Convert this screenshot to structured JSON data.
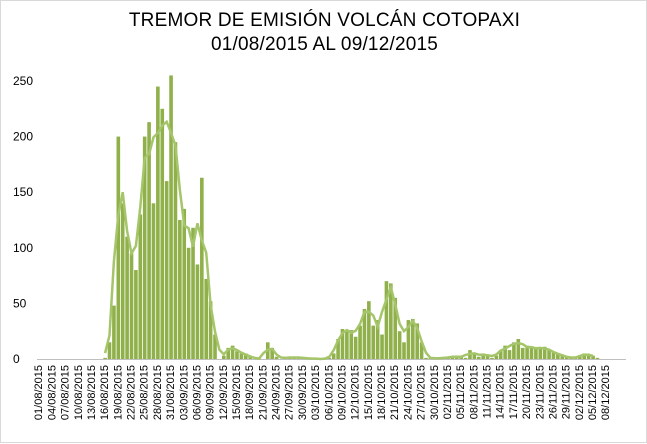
{
  "chart_data": {
    "type": "bar",
    "title_line1": "TREMOR DE EMISIÓN VOLCÁN COTOPAXI",
    "title_line2": "01/08/2015 AL 09/12/2015",
    "xlabel": "",
    "ylabel": "",
    "ylim": [
      0,
      250
    ],
    "yticks": [
      "0",
      "50",
      "100",
      "150",
      "200",
      "250"
    ],
    "grid": false,
    "legend": "none",
    "bar_color": "#8fb04a",
    "line_color": "#a5c56a",
    "start_date": "01/08/2015",
    "x_tick_labels": [
      "01/08/2015",
      "04/08/2015",
      "07/08/2015",
      "10/08/2015",
      "13/08/2015",
      "16/08/2015",
      "19/08/2015",
      "22/08/2015",
      "25/08/2015",
      "28/08/2015",
      "31/08/2015",
      "03/09/2015",
      "06/09/2015",
      "09/09/2015",
      "12/09/2015",
      "15/09/2015",
      "18/09/2015",
      "21/09/2015",
      "24/09/2015",
      "27/09/2015",
      "30/09/2015",
      "03/10/2015",
      "06/10/2015",
      "09/10/2015",
      "12/10/2015",
      "15/10/2015",
      "18/10/2015",
      "21/10/2015",
      "24/10/2015",
      "27/10/2015",
      "30/10/2015",
      "02/11/2015",
      "05/11/2015",
      "08/11/2015",
      "11/11/2015",
      "14/11/2015",
      "17/11/2015",
      "20/11/2015",
      "23/11/2015",
      "26/11/2015",
      "29/11/2015",
      "02/12/2015",
      "05/12/2015",
      "08/12/2015"
    ],
    "values": [
      0,
      0,
      0,
      0,
      0,
      0,
      0,
      0,
      0,
      0,
      0,
      0,
      0,
      0,
      0,
      1,
      15,
      48,
      200,
      140,
      110,
      95,
      80,
      130,
      200,
      213,
      140,
      245,
      225,
      160,
      255,
      195,
      125,
      135,
      100,
      118,
      85,
      163,
      72,
      52,
      22,
      0,
      3,
      10,
      12,
      7,
      5,
      5,
      2,
      0,
      1,
      0,
      15,
      10,
      2,
      0,
      2,
      1,
      1,
      2,
      1,
      0,
      1,
      0,
      0,
      0,
      1,
      5,
      18,
      27,
      25,
      26,
      20,
      30,
      45,
      52,
      30,
      35,
      22,
      70,
      68,
      55,
      25,
      15,
      35,
      36,
      32,
      15,
      1,
      1,
      1,
      0,
      1,
      2,
      1,
      3,
      2,
      1,
      8,
      5,
      2,
      5,
      4,
      1,
      3,
      8,
      12,
      8,
      15,
      18,
      10,
      12,
      10,
      10,
      9,
      11,
      8,
      6,
      5,
      3,
      2,
      1,
      1,
      2,
      5,
      4,
      3,
      1,
      0,
      0,
      0,
      0,
      0,
      0
    ]
  }
}
